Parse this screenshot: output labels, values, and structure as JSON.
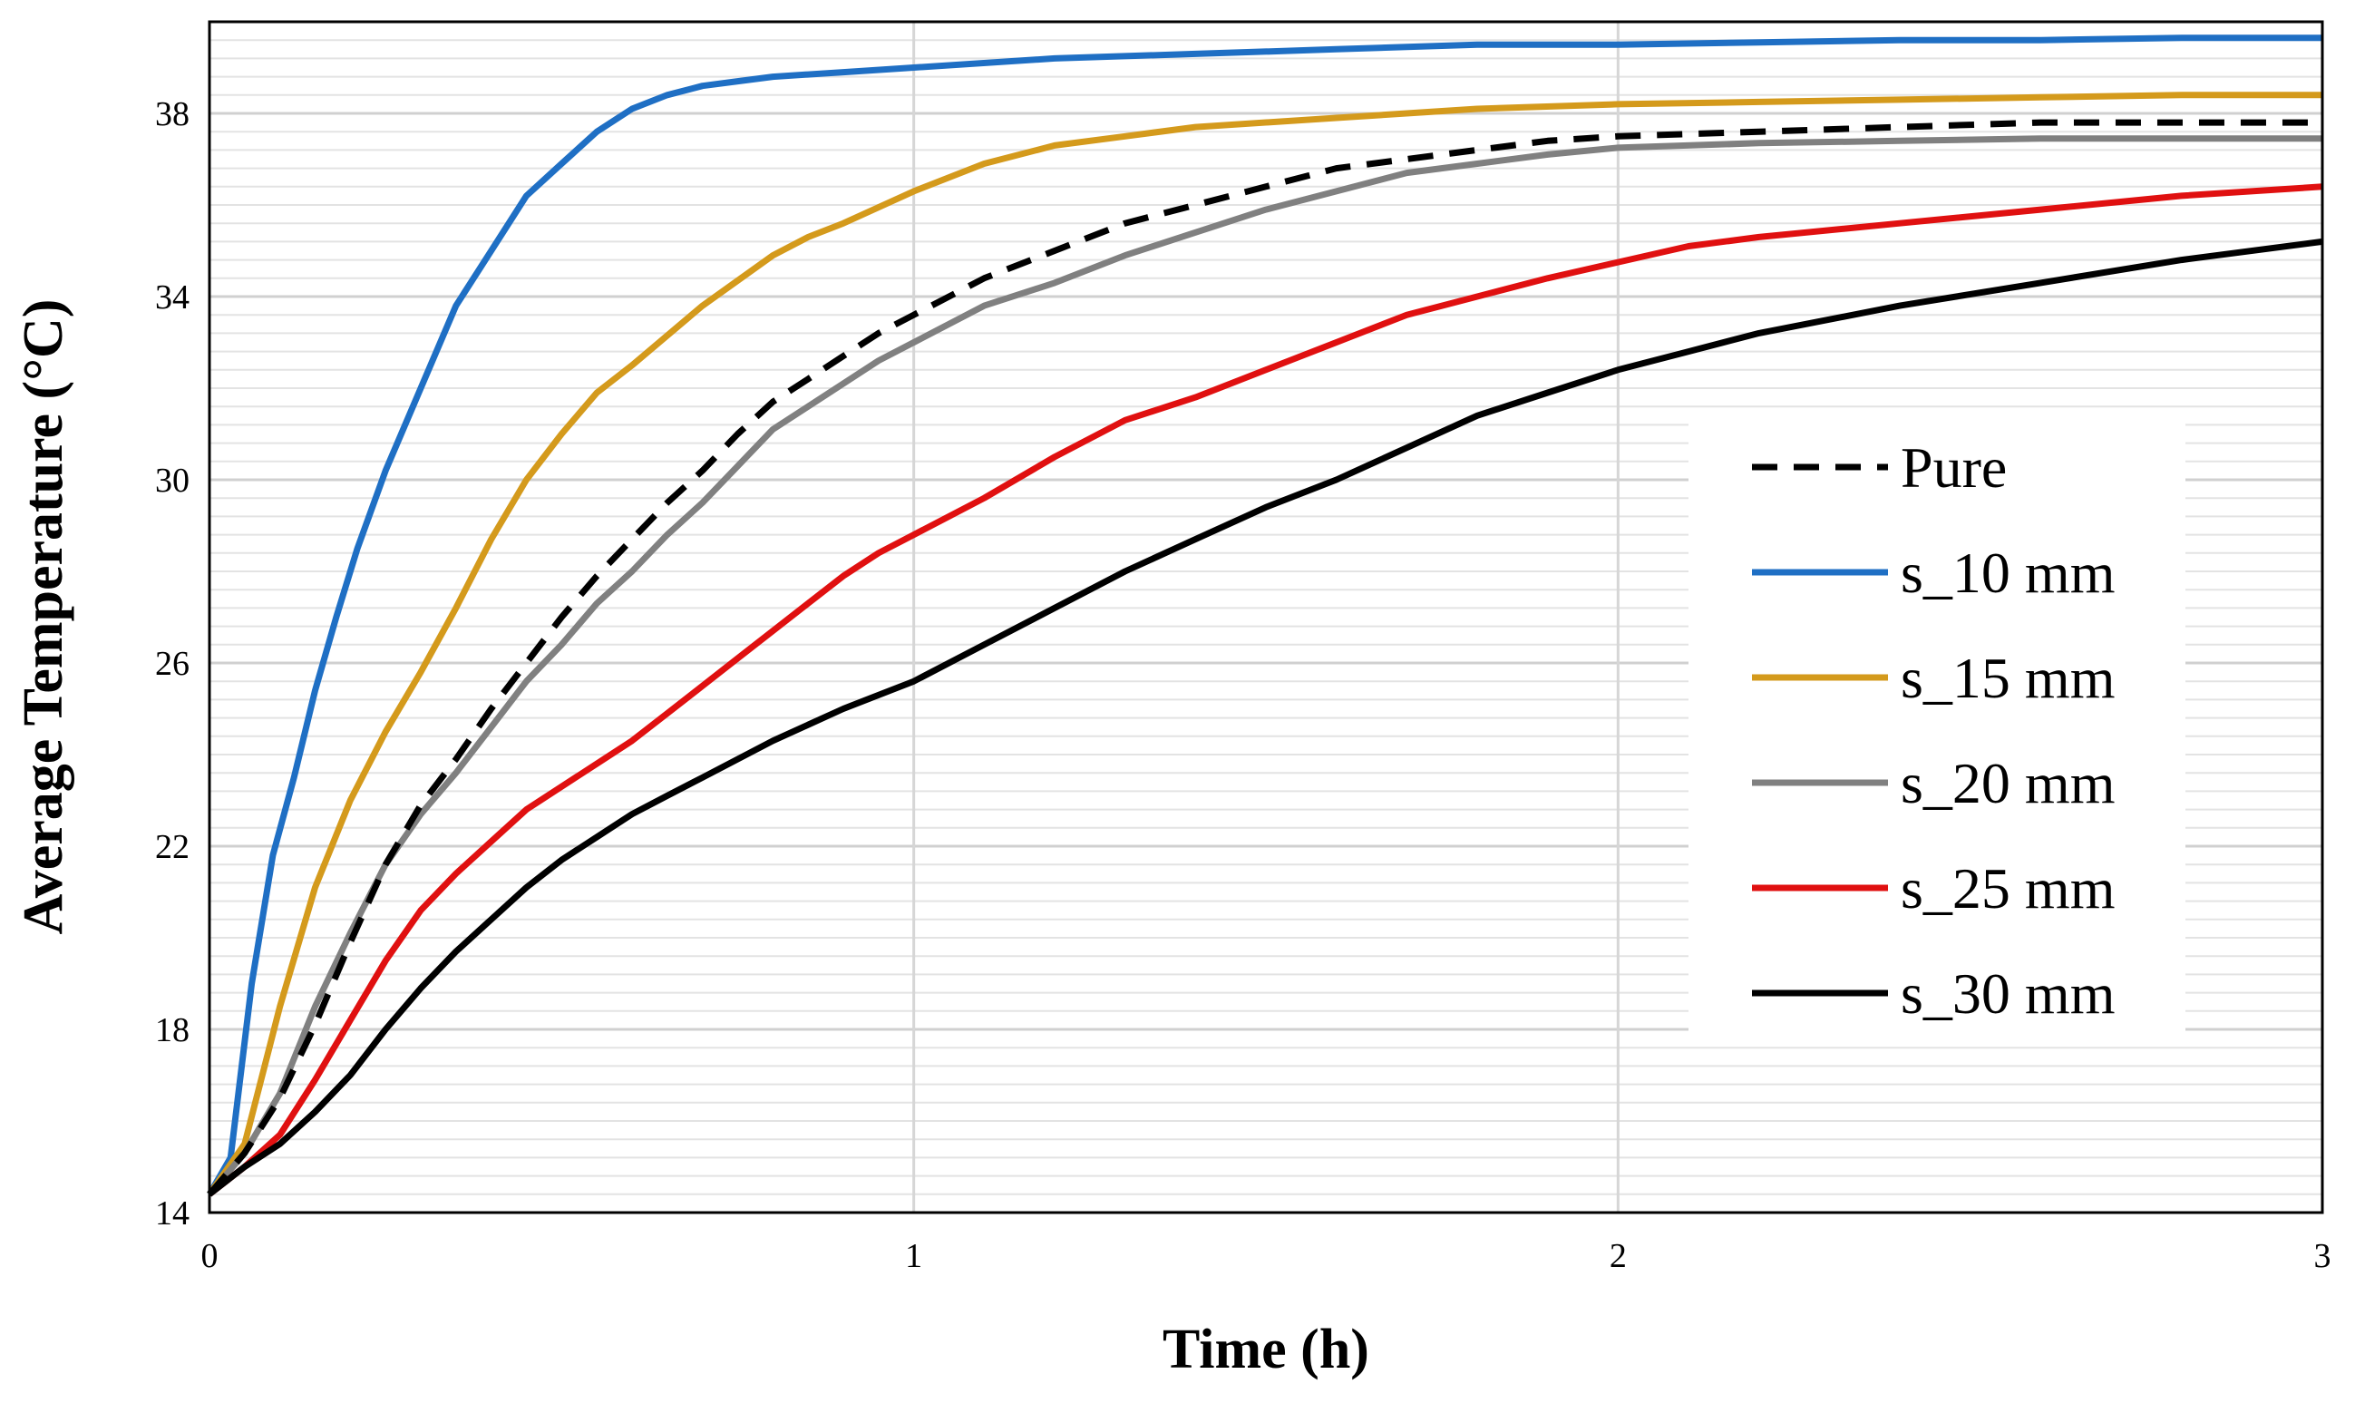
{
  "chart_data": {
    "type": "line",
    "title": "",
    "xlabel": "Time (h)",
    "ylabel": "Average Temperature (°C)",
    "xlim": [
      0,
      3
    ],
    "ylim": [
      14,
      40
    ],
    "x_ticks": [
      "0",
      "1",
      "2",
      "3"
    ],
    "y_ticks": [
      "14",
      "18",
      "22",
      "26",
      "30",
      "34",
      "38"
    ],
    "x_tick_values": [
      0,
      1,
      2,
      3
    ],
    "y_tick_values": [
      14,
      18,
      22,
      26,
      30,
      34,
      38
    ],
    "major_grid_x": [
      1,
      2
    ],
    "minor_grid_y_step": 0.4,
    "legend_position": "center-right",
    "series": [
      {
        "name": "Pure",
        "color": "#000000",
        "dash": "dashed",
        "x": [
          0,
          0.05,
          0.1,
          0.15,
          0.2,
          0.25,
          0.3,
          0.35,
          0.4,
          0.45,
          0.5,
          0.55,
          0.6,
          0.65,
          0.7,
          0.75,
          0.8,
          0.85,
          0.9,
          0.95,
          1.0,
          1.1,
          1.2,
          1.3,
          1.4,
          1.5,
          1.6,
          1.7,
          1.8,
          1.9,
          2.0,
          2.2,
          2.4,
          2.6,
          2.8,
          3.0
        ],
        "values": [
          14.4,
          15.3,
          16.5,
          18.1,
          19.9,
          21.6,
          22.9,
          23.9,
          25.0,
          26.0,
          27.0,
          27.9,
          28.7,
          29.5,
          30.2,
          31.0,
          31.7,
          32.2,
          32.7,
          33.2,
          33.6,
          34.4,
          35.0,
          35.6,
          36.0,
          36.4,
          36.8,
          37.0,
          37.2,
          37.4,
          37.5,
          37.6,
          37.7,
          37.8,
          37.8,
          37.8
        ]
      },
      {
        "name": "s_10 mm",
        "color": "#1f6fc4",
        "dash": "solid",
        "x": [
          0,
          0.03,
          0.06,
          0.09,
          0.12,
          0.15,
          0.18,
          0.21,
          0.25,
          0.3,
          0.35,
          0.4,
          0.45,
          0.5,
          0.55,
          0.6,
          0.65,
          0.7,
          0.75,
          0.8,
          0.9,
          1.0,
          1.2,
          1.4,
          1.6,
          1.8,
          2.0,
          2.2,
          2.4,
          2.6,
          2.8,
          3.0
        ],
        "values": [
          14.4,
          15.2,
          19.0,
          21.8,
          23.5,
          25.4,
          27.0,
          28.5,
          30.2,
          32.0,
          33.8,
          35.0,
          36.2,
          36.9,
          37.6,
          38.1,
          38.4,
          38.6,
          38.7,
          38.8,
          38.9,
          39.0,
          39.2,
          39.3,
          39.4,
          39.5,
          39.5,
          39.55,
          39.6,
          39.6,
          39.65,
          39.65
        ]
      },
      {
        "name": "s_15 mm",
        "color": "#d49a1c",
        "dash": "solid",
        "x": [
          0,
          0.05,
          0.1,
          0.15,
          0.2,
          0.25,
          0.3,
          0.35,
          0.4,
          0.45,
          0.5,
          0.55,
          0.6,
          0.7,
          0.8,
          0.85,
          0.9,
          1.0,
          1.1,
          1.2,
          1.3,
          1.4,
          1.6,
          1.8,
          2.0,
          2.2,
          2.4,
          2.6,
          2.8,
          3.0
        ],
        "values": [
          14.4,
          15.5,
          18.5,
          21.1,
          23.0,
          24.5,
          25.8,
          27.2,
          28.7,
          30.0,
          31.0,
          31.9,
          32.5,
          33.8,
          34.9,
          35.3,
          35.6,
          36.3,
          36.9,
          37.3,
          37.5,
          37.7,
          37.9,
          38.1,
          38.2,
          38.25,
          38.3,
          38.35,
          38.4,
          38.4
        ]
      },
      {
        "name": "s_20 mm",
        "color": "#808080",
        "dash": "solid",
        "x": [
          0,
          0.05,
          0.1,
          0.15,
          0.2,
          0.25,
          0.3,
          0.35,
          0.4,
          0.45,
          0.5,
          0.55,
          0.6,
          0.65,
          0.7,
          0.75,
          0.8,
          0.85,
          0.9,
          0.95,
          1.0,
          1.1,
          1.2,
          1.3,
          1.4,
          1.5,
          1.6,
          1.7,
          1.8,
          1.9,
          2.0,
          2.2,
          2.4,
          2.6,
          2.8,
          3.0
        ],
        "values": [
          14.4,
          15.3,
          16.6,
          18.5,
          20.1,
          21.6,
          22.7,
          23.6,
          24.6,
          25.6,
          26.4,
          27.3,
          28.0,
          28.8,
          29.5,
          30.3,
          31.1,
          31.6,
          32.1,
          32.6,
          33.0,
          33.8,
          34.3,
          34.9,
          35.4,
          35.9,
          36.3,
          36.7,
          36.9,
          37.1,
          37.25,
          37.35,
          37.4,
          37.45,
          37.45,
          37.45
        ]
      },
      {
        "name": "s_25 mm",
        "color": "#e01010",
        "dash": "solid",
        "x": [
          0,
          0.05,
          0.1,
          0.15,
          0.2,
          0.25,
          0.3,
          0.35,
          0.4,
          0.45,
          0.5,
          0.55,
          0.6,
          0.65,
          0.7,
          0.75,
          0.8,
          0.85,
          0.9,
          0.95,
          1.0,
          1.1,
          1.2,
          1.3,
          1.4,
          1.5,
          1.6,
          1.7,
          1.8,
          1.9,
          2.0,
          2.1,
          2.2,
          2.4,
          2.6,
          2.8,
          3.0
        ],
        "values": [
          14.4,
          15.0,
          15.7,
          16.9,
          18.2,
          19.5,
          20.6,
          21.4,
          22.1,
          22.8,
          23.3,
          23.8,
          24.3,
          24.9,
          25.5,
          26.1,
          26.7,
          27.3,
          27.9,
          28.4,
          28.8,
          29.6,
          30.5,
          31.3,
          31.8,
          32.4,
          33.0,
          33.6,
          34.0,
          34.4,
          34.75,
          35.1,
          35.3,
          35.6,
          35.9,
          36.2,
          36.4
        ]
      },
      {
        "name": "s_30 mm",
        "color": "#000000",
        "dash": "solid",
        "x": [
          0,
          0.05,
          0.1,
          0.15,
          0.2,
          0.25,
          0.3,
          0.35,
          0.4,
          0.45,
          0.5,
          0.55,
          0.6,
          0.65,
          0.7,
          0.8,
          0.9,
          1.0,
          1.1,
          1.2,
          1.3,
          1.4,
          1.5,
          1.6,
          1.7,
          1.8,
          1.9,
          2.0,
          2.1,
          2.2,
          2.4,
          2.6,
          2.8,
          3.0
        ],
        "values": [
          14.4,
          15.0,
          15.5,
          16.2,
          17.0,
          18.0,
          18.9,
          19.7,
          20.4,
          21.1,
          21.7,
          22.2,
          22.7,
          23.1,
          23.5,
          24.3,
          25.0,
          25.6,
          26.4,
          27.2,
          28.0,
          28.7,
          29.4,
          30.0,
          30.7,
          31.4,
          31.9,
          32.4,
          32.8,
          33.2,
          33.8,
          34.3,
          34.8,
          35.2
        ]
      }
    ]
  }
}
